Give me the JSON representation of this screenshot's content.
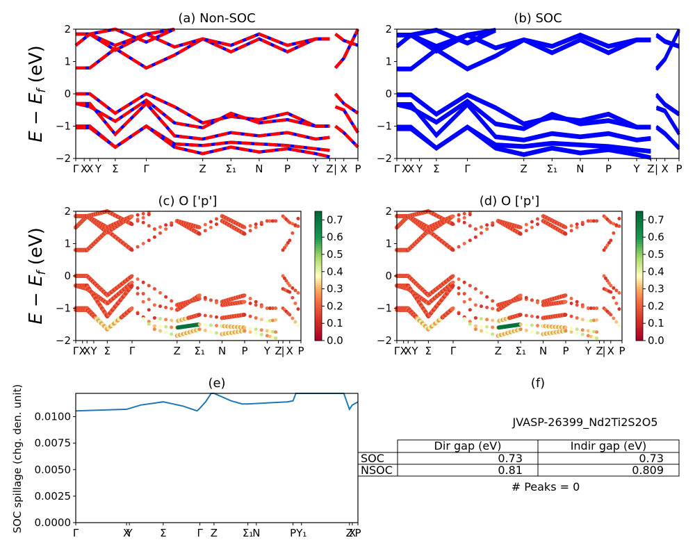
{
  "figure": {
    "ylabel_band": "E − E_f (eV)",
    "chart_data": [
      {
        "id": "a",
        "type": "line",
        "title": "(a) Non-SOC",
        "ylim": [
          -2,
          2
        ],
        "yticks": [
          -2,
          -1,
          0,
          1,
          2
        ],
        "xtick_labels": [
          "Γ",
          "X",
          "X",
          "Y",
          "Σ",
          "Γ",
          "Z",
          "Σ₁",
          "N",
          "P",
          "Y",
          "Z",
          "|",
          "X",
          "P"
        ],
        "kpath_positions": [
          0,
          0.03,
          0.05,
          0.08,
          0.14,
          0.25,
          0.45,
          0.55,
          0.65,
          0.75,
          0.85,
          0.9,
          0.92,
          0.95,
          1.0
        ],
        "line_colors": [
          "#ff0000",
          "#0000ff"
        ],
        "style": "red/blue dashed overlay",
        "bands": [
          {
            "x": [
              0,
              0.05,
              0.14,
              0.25,
              0.35,
              0.45,
              0.55,
              0.65,
              0.75,
              0.85,
              0.9
            ],
            "y": [
              0.8,
              0.8,
              1.4,
              0.8,
              1.2,
              1.7,
              1.3,
              1.7,
              1.3,
              1.7,
              1.7
            ]
          },
          {
            "x": [
              0,
              0.05,
              0.14,
              0.25,
              0.35,
              0.45,
              0.55,
              0.65,
              0.75,
              0.85,
              0.9
            ],
            "y": [
              1.85,
              1.85,
              1.35,
              1.85,
              1.45,
              1.7,
              1.5,
              1.85,
              1.5,
              1.7,
              1.7
            ]
          },
          {
            "x": [
              0,
              0.05,
              0.14,
              0.25,
              0.35
            ],
            "y": [
              1.85,
              1.85,
              1.5,
              1.85,
              2.0
            ]
          },
          {
            "x": [
              0,
              0.05,
              0.14,
              0.25,
              0.35
            ],
            "y": [
              1.5,
              1.85,
              2.0,
              1.6,
              2.0
            ]
          },
          {
            "x": [
              0,
              0.05,
              0.14,
              0.25,
              0.35,
              0.45,
              0.55,
              0.65,
              0.75,
              0.85,
              0.9
            ],
            "y": [
              0.0,
              0.0,
              -0.6,
              0.0,
              -0.4,
              -0.9,
              -0.7,
              -0.8,
              -0.6,
              -1.0,
              -1.0
            ]
          },
          {
            "x": [
              0,
              0.05,
              0.14,
              0.25,
              0.35,
              0.45,
              0.55,
              0.65,
              0.75,
              0.85,
              0.9
            ],
            "y": [
              -0.3,
              -0.4,
              -0.85,
              -0.2,
              -0.9,
              -1.05,
              -0.6,
              -0.9,
              -0.8,
              -1.0,
              -1.0
            ]
          },
          {
            "x": [
              0,
              0.05,
              0.14,
              0.25,
              0.35,
              0.45,
              0.55,
              0.65,
              0.75,
              0.85,
              0.9
            ],
            "y": [
              -0.3,
              -0.3,
              -1.25,
              -0.3,
              -1.3,
              -1.4,
              -1.2,
              -1.3,
              -1.2,
              -1.4,
              -1.35
            ]
          },
          {
            "x": [
              0,
              0.05,
              0.14,
              0.25,
              0.35,
              0.45,
              0.55,
              0.65,
              0.75,
              0.85,
              0.9
            ],
            "y": [
              -1.0,
              -1.0,
              -1.65,
              -1.0,
              -1.55,
              -1.6,
              -1.5,
              -1.55,
              -1.6,
              -1.7,
              -1.75
            ]
          },
          {
            "x": [
              0,
              0.05,
              0.14,
              0.25,
              0.35,
              0.45,
              0.55,
              0.65,
              0.75,
              0.85,
              0.9
            ],
            "y": [
              -1.05,
              -1.05,
              -1.65,
              -1.0,
              -1.65,
              -1.85,
              -1.65,
              -1.8,
              -1.7,
              -1.85,
              -1.95
            ]
          },
          {
            "x": [
              0.92,
              0.95,
              1.0
            ],
            "y": [
              0.8,
              1.1,
              2.0
            ]
          },
          {
            "x": [
              0.92,
              0.95,
              1.0
            ],
            "y": [
              1.85,
              1.65,
              1.5
            ]
          },
          {
            "x": [
              0.92,
              0.95,
              1.0
            ],
            "y": [
              0.0,
              -0.3,
              -0.6
            ]
          },
          {
            "x": [
              0.92,
              0.95,
              1.0
            ],
            "y": [
              -0.4,
              -0.5,
              -1.2
            ]
          },
          {
            "x": [
              0.92,
              0.95,
              1.0
            ],
            "y": [
              -1.0,
              -1.2,
              -1.65
            ]
          }
        ]
      },
      {
        "id": "b",
        "type": "line",
        "title": "(b) SOC",
        "ylim": [
          -2,
          2
        ],
        "yticks": [
          -2,
          -1,
          0,
          1,
          2
        ],
        "xtick_labels": [
          "Γ",
          "X",
          "X",
          "Y",
          "Σ",
          "Γ",
          "Z",
          "Σ₁",
          "N",
          "P",
          "Y",
          "Z",
          "|",
          "X",
          "P"
        ],
        "line_colors": [
          "#0000ff"
        ],
        "style": "solid blue"
      },
      {
        "id": "c",
        "type": "scatter",
        "title": "(c)  O ['p']",
        "ylim": [
          -2,
          2
        ],
        "yticks": [
          -2,
          -1,
          0,
          1,
          2
        ],
        "xtick_labels": [
          "Γ",
          "X",
          "X",
          "Y",
          "Σ",
          "Γ",
          "Z",
          "Σ₁",
          "N",
          "P",
          "Y",
          "Z",
          "|",
          "X",
          "P"
        ],
        "colorbar": {
          "cmap": "RdYlGn",
          "range": [
            0.0,
            0.75
          ],
          "ticks": [
            "0.0",
            "0.1",
            "0.2",
            "0.3",
            "0.4",
            "0.5",
            "0.6",
            "0.7"
          ]
        }
      },
      {
        "id": "d",
        "type": "scatter",
        "title": "(d) O ['p']",
        "ylim": [
          -2,
          2
        ],
        "yticks": [
          -2,
          -1,
          0,
          1,
          2
        ],
        "xtick_labels": [
          "Γ",
          "X",
          "X",
          "Y",
          "Σ",
          "Γ",
          "Z",
          "Σ₁",
          "N",
          "P",
          "Y",
          "Z",
          "|",
          "X",
          "P"
        ],
        "colorbar": {
          "cmap": "RdYlGn",
          "range": [
            0.0,
            0.75
          ],
          "ticks": [
            "0.0",
            "0.1",
            "0.2",
            "0.3",
            "0.4",
            "0.5",
            "0.6",
            "0.7"
          ]
        }
      },
      {
        "id": "e",
        "type": "line",
        "title": "(e)",
        "ylabel": "SOC spillage (chg. den. unit)",
        "ylim": [
          0.0,
          0.0122
        ],
        "yticks": [
          "0.0000",
          "0.0025",
          "0.0050",
          "0.0075",
          "0.0100"
        ],
        "xtick_labels": [
          "Γ",
          "X",
          "Y",
          "Σ",
          "Γ",
          "Z",
          "Σ₁",
          "N",
          "P",
          "Y₁",
          "Z",
          "X",
          "P"
        ],
        "xtick_positions": [
          0,
          0.18,
          0.19,
          0.31,
          0.44,
          0.49,
          0.61,
          0.64,
          0.77,
          0.8,
          0.97,
          0.98,
          1.0
        ],
        "series": [
          {
            "name": "spillage",
            "color": "#1f77b4",
            "x": [
              0,
              0.18,
              0.23,
              0.31,
              0.38,
              0.43,
              0.44,
              0.46,
              0.48,
              0.49,
              0.55,
              0.59,
              0.61,
              0.75,
              0.77,
              0.78,
              0.79,
              0.95,
              0.97,
              0.98,
              1.0
            ],
            "y": [
              0.01055,
              0.0107,
              0.0111,
              0.0114,
              0.011,
              0.01055,
              0.0108,
              0.0114,
              0.0122,
              0.0125,
              0.0115,
              0.0112,
              0.0112,
              0.0114,
              0.0115,
              0.0122,
              0.0125,
              0.0125,
              0.0107,
              0.0111,
              0.0114
            ]
          }
        ]
      },
      {
        "id": "f",
        "type": "table",
        "title": "(f)",
        "material": "JVASP-26399_Nd2Ti2S2O5",
        "columns": [
          "Dir gap (eV)",
          "Indir gap (eV)"
        ],
        "rows": [
          {
            "label": "SOC",
            "values": [
              "0.73",
              "0.73"
            ]
          },
          {
            "label": "NSOC",
            "values": [
              "0.81",
              "0.809"
            ]
          }
        ],
        "footer": "# Peaks = 0"
      }
    ]
  }
}
